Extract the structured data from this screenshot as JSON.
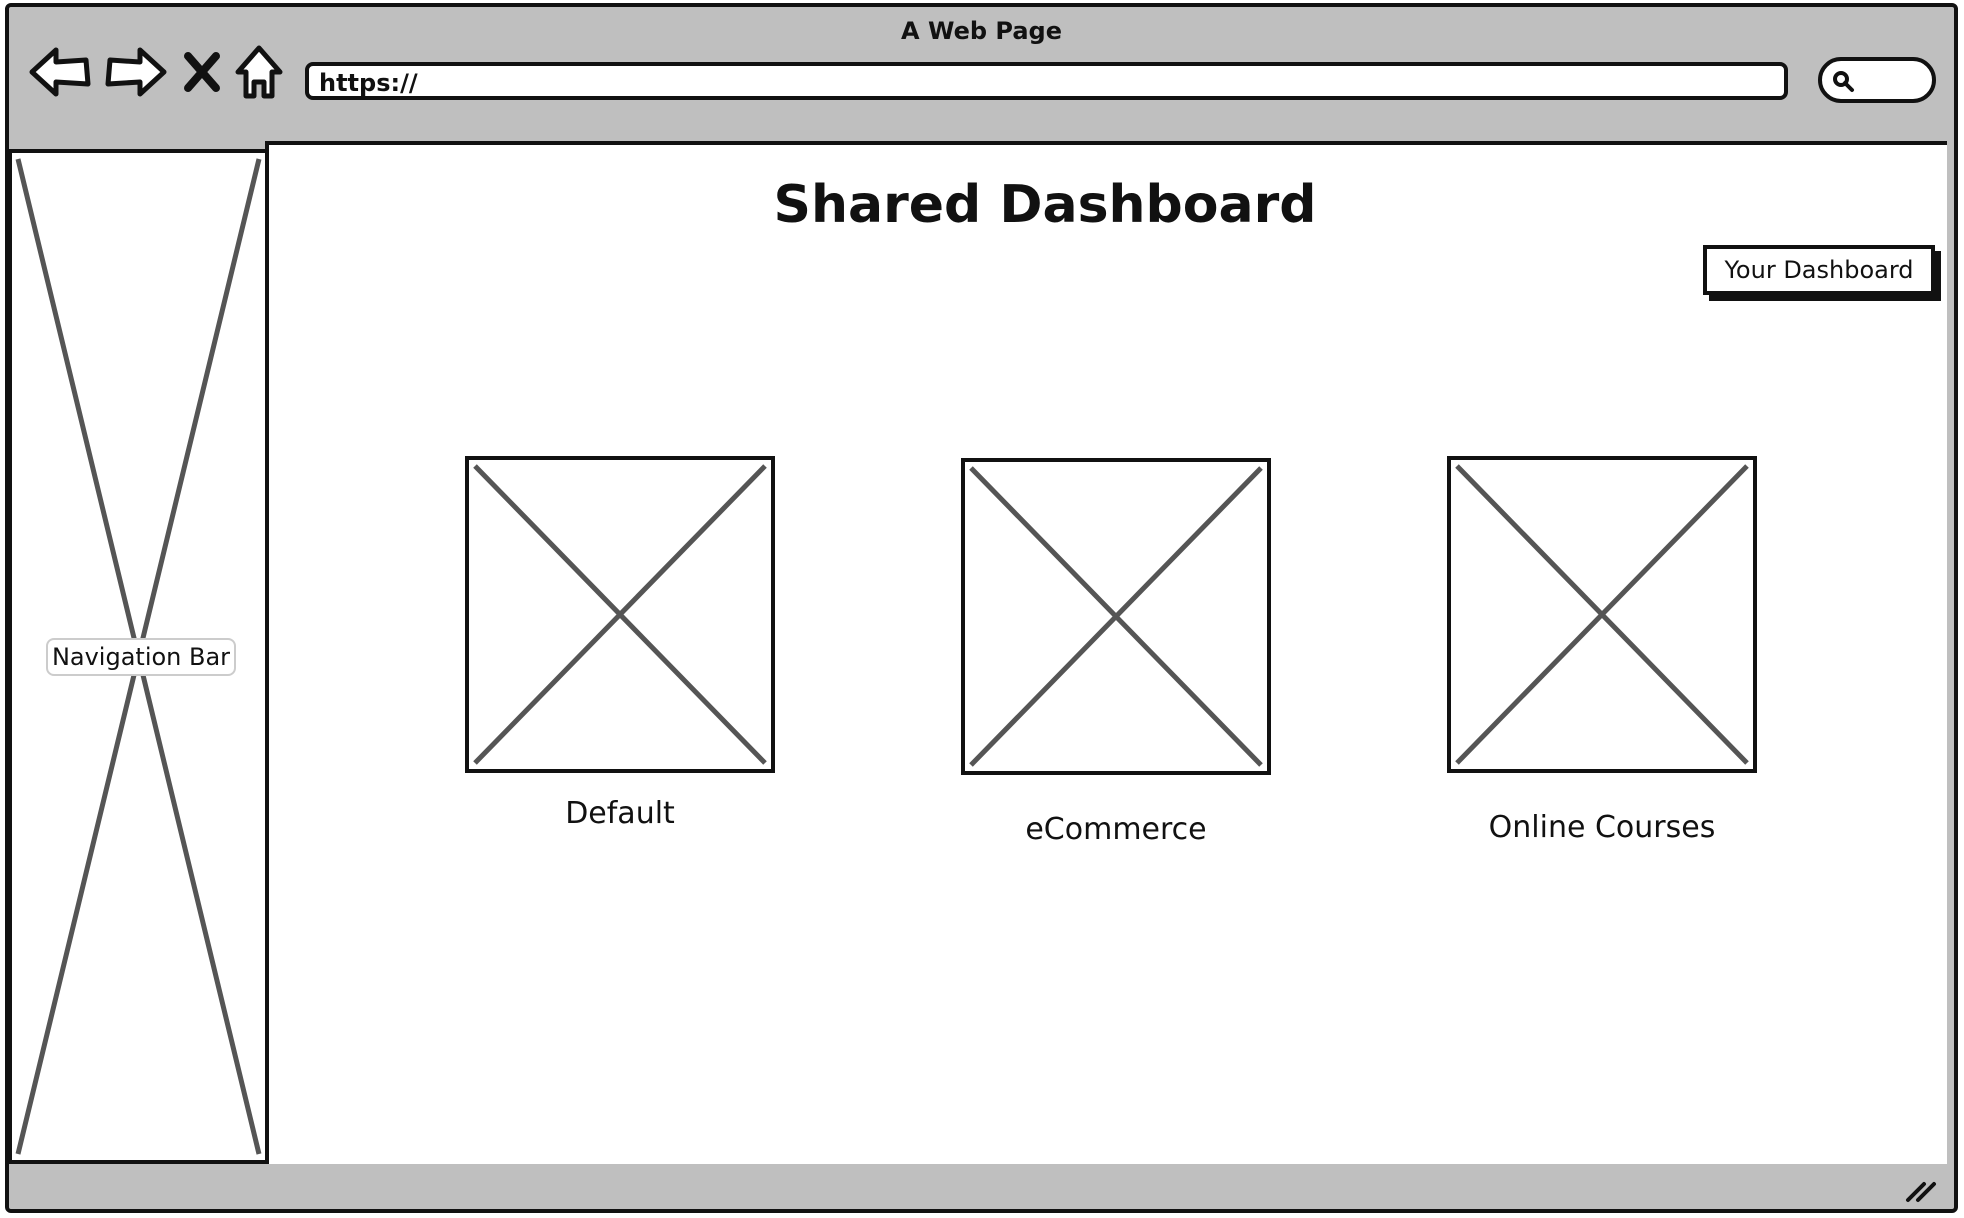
{
  "browser": {
    "title": "A Web Page",
    "url": "https://",
    "buttons": {
      "back_icon": "back-arrow-icon",
      "forward_icon": "forward-arrow-icon",
      "stop_icon": "close-icon",
      "home_icon": "home-icon",
      "search_icon": "search-icon"
    }
  },
  "sidebar": {
    "label": "Navigation Bar"
  },
  "main": {
    "title": "Shared Dashboard",
    "your_dashboard_button": "Your Dashboard",
    "cards": [
      {
        "label": "Default"
      },
      {
        "label": "eCommerce"
      },
      {
        "label": "Online Courses"
      }
    ]
  },
  "colors": {
    "chrome": "#bfbfbf",
    "ink": "#111111",
    "placeholder_cross": "#555555"
  }
}
